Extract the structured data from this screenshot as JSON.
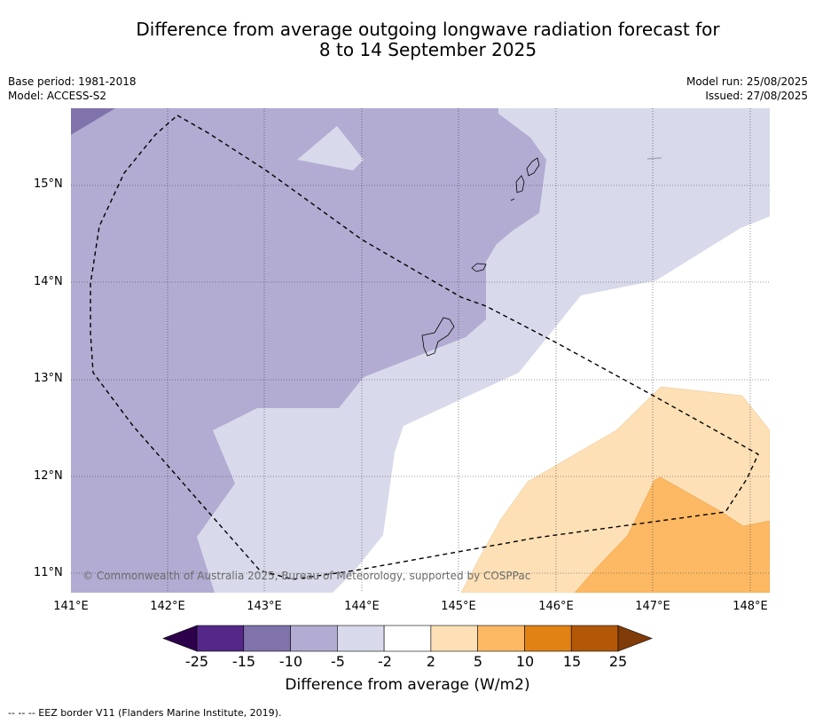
{
  "title": {
    "line1": "Difference from average outgoing longwave radiation forecast for",
    "line2": "8 to 14 September 2025"
  },
  "meta": {
    "base_period": "Base period: 1981-2018",
    "model": "Model: ACCESS-S2",
    "model_run": "Model run: 25/08/2025",
    "issued": "Issued: 27/08/2025"
  },
  "map": {
    "lon_range": [
      141,
      148.2
    ],
    "lat_range": [
      10.8,
      15.8
    ],
    "lat_ticks": [
      "15°N",
      "14°N",
      "13°N",
      "12°N",
      "11°N"
    ],
    "lon_ticks": [
      "141°E",
      "142°E",
      "143°E",
      "144°E",
      "145°E",
      "146°E",
      "147°E",
      "148°E"
    ],
    "grid": true,
    "copyright": "© Commonwealth of Australia 2025, Bureau of Meteorology, supported by COSPPac"
  },
  "colorbar": {
    "ticks": [
      "-25",
      "-15",
      "-10",
      "-5",
      "-2",
      "2",
      "5",
      "10",
      "15",
      "25"
    ],
    "colors": [
      "#2d004b",
      "#542788",
      "#8073ac",
      "#b2abd2",
      "#d8daeb",
      "#ffffff",
      "#fee0b6",
      "#fdb863",
      "#e08214",
      "#b35806",
      "#7f3b08"
    ],
    "label": "Difference from average (W/m2)"
  },
  "footer": "--  --  -- EEZ border V11 (Flanders Marine Institute, 2019)."
}
